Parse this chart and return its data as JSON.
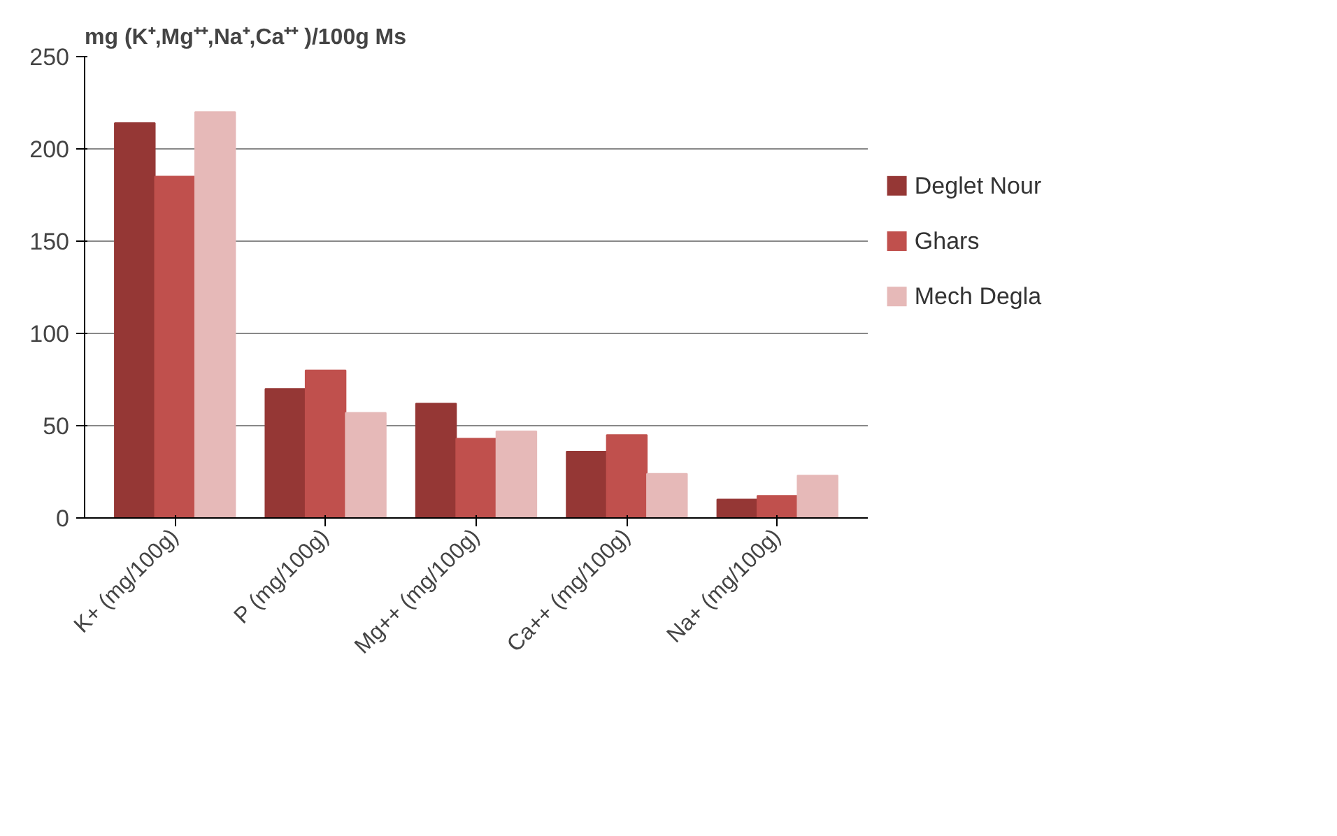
{
  "chart_data": {
    "type": "bar",
    "title": "mg (K⁺,Mg⁺⁺,Na⁺,Ca⁺⁺ )/100g Ms",
    "categories": [
      "K+ (mg/100g)",
      "P (mg/100g)",
      "Mg++ (mg/100g)",
      "Ca++ (mg/100g)",
      "Na+ (mg/100g)"
    ],
    "series": [
      {
        "name": "Deglet Nour",
        "color": "#953735",
        "values": [
          214,
          70,
          62,
          36,
          10
        ]
      },
      {
        "name": "Ghars",
        "color": "#c0504d",
        "values": [
          185,
          80,
          43,
          45,
          12
        ]
      },
      {
        "name": "Mech Degla",
        "color": "#e6b9b8",
        "values": [
          220,
          57,
          47,
          24,
          23
        ]
      }
    ],
    "ylim": [
      0,
      250
    ],
    "yticks": [
      0,
      50,
      100,
      150,
      200,
      250
    ],
    "grid": "y",
    "legend": "right"
  }
}
